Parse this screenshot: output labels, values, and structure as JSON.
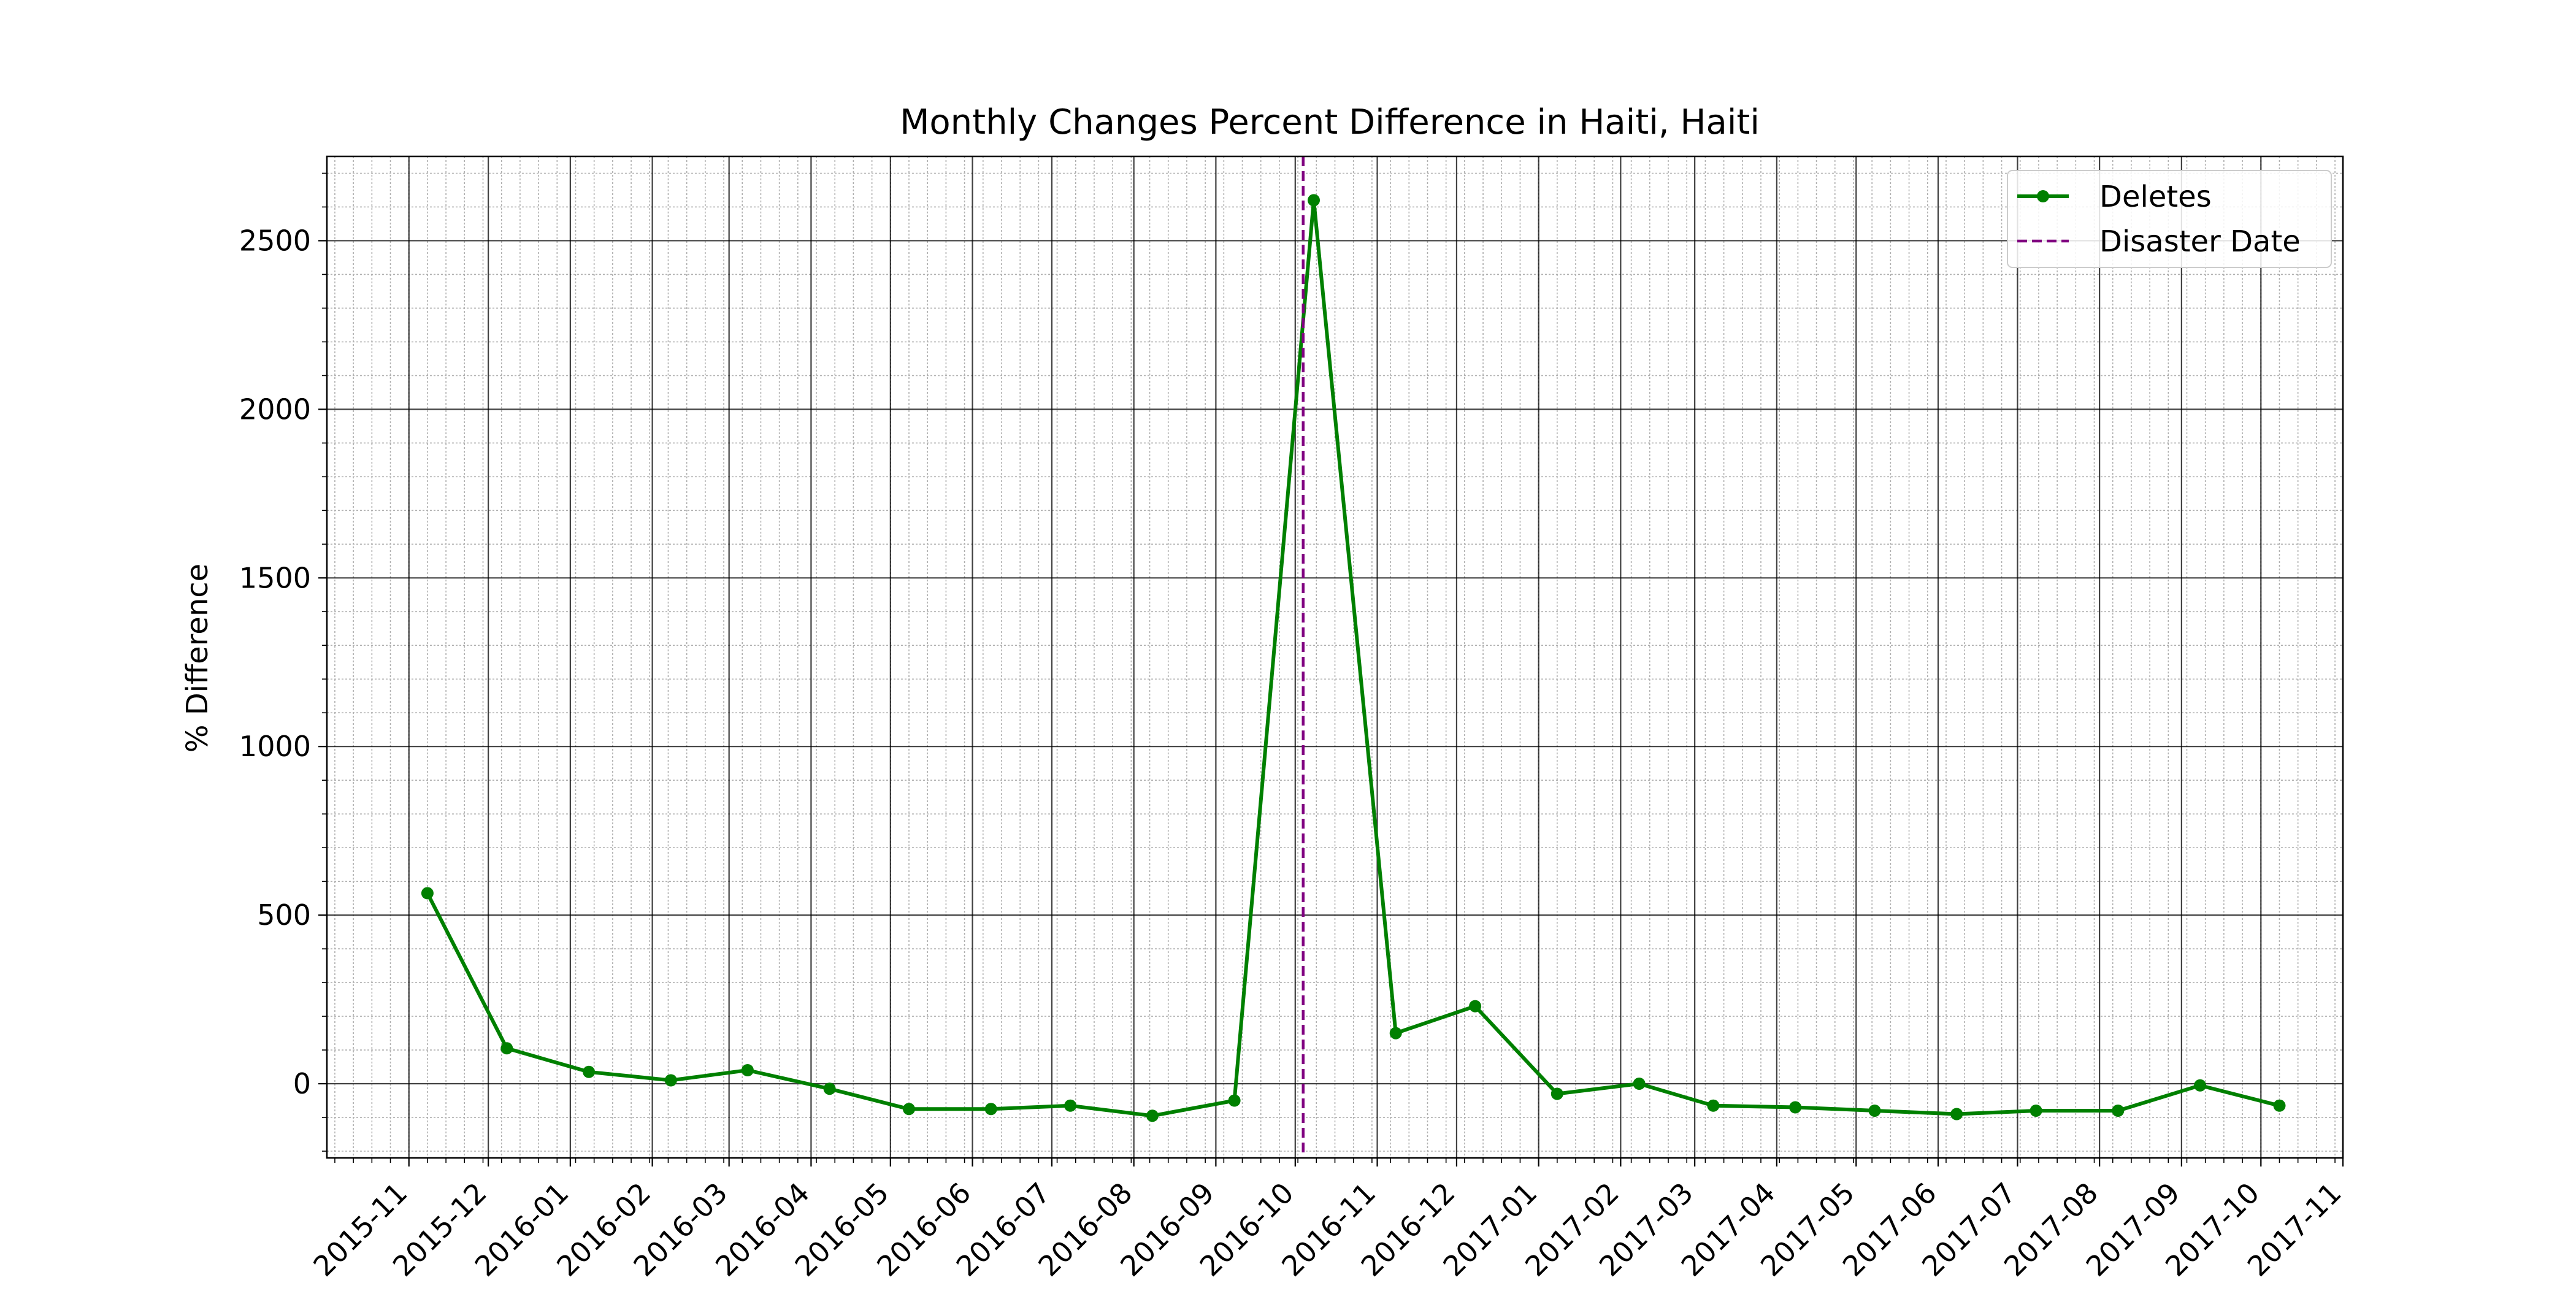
{
  "chart_data": {
    "type": "line",
    "title": "Monthly Changes Percent Difference in Haiti, Haiti",
    "xlabel": "",
    "ylabel": "% Difference",
    "x_tick_labels": [
      "2015-11",
      "2015-12",
      "2016-01",
      "2016-02",
      "2016-03",
      "2016-04",
      "2016-05",
      "2016-06",
      "2016-07",
      "2016-08",
      "2016-09",
      "2016-10",
      "2016-11",
      "2016-12",
      "2017-01",
      "2017-02",
      "2017-03",
      "2017-04",
      "2017-05",
      "2017-06",
      "2017-07",
      "2017-08",
      "2017-09",
      "2017-10",
      "2017-11"
    ],
    "y_ticks": [
      0,
      500,
      1000,
      1500,
      2000,
      2500
    ],
    "xlim": [
      "2015-10-01",
      "2017-11-01"
    ],
    "ylim": [
      -220,
      2750
    ],
    "grid": "major and minor",
    "legend_position": "top-right",
    "series": [
      {
        "name": "Deletes",
        "color": "#008000",
        "marker": "circle",
        "points": [
          {
            "x": "2015-11-08",
            "y": 565
          },
          {
            "x": "2015-12-08",
            "y": 105
          },
          {
            "x": "2016-01-08",
            "y": 35
          },
          {
            "x": "2016-02-08",
            "y": 10
          },
          {
            "x": "2016-03-08",
            "y": 40
          },
          {
            "x": "2016-04-08",
            "y": -15
          },
          {
            "x": "2016-05-08",
            "y": -75
          },
          {
            "x": "2016-06-08",
            "y": -75
          },
          {
            "x": "2016-07-08",
            "y": -65
          },
          {
            "x": "2016-08-08",
            "y": -95
          },
          {
            "x": "2016-09-08",
            "y": -50
          },
          {
            "x": "2016-10-08",
            "y": 2620
          },
          {
            "x": "2016-11-08",
            "y": 150
          },
          {
            "x": "2016-12-08",
            "y": 230
          },
          {
            "x": "2017-01-08",
            "y": -30
          },
          {
            "x": "2017-02-08",
            "y": 0
          },
          {
            "x": "2017-03-08",
            "y": -65
          },
          {
            "x": "2017-04-08",
            "y": -70
          },
          {
            "x": "2017-05-08",
            "y": -80
          },
          {
            "x": "2017-06-08",
            "y": -90
          },
          {
            "x": "2017-07-08",
            "y": -80
          },
          {
            "x": "2017-08-08",
            "y": -80
          },
          {
            "x": "2017-09-08",
            "y": -5
          },
          {
            "x": "2017-10-08",
            "y": -65
          }
        ]
      }
    ],
    "reference_lines": [
      {
        "name": "Disaster Date",
        "x": "2016-10-04",
        "color": "#800080",
        "style": "dashed"
      }
    ]
  }
}
